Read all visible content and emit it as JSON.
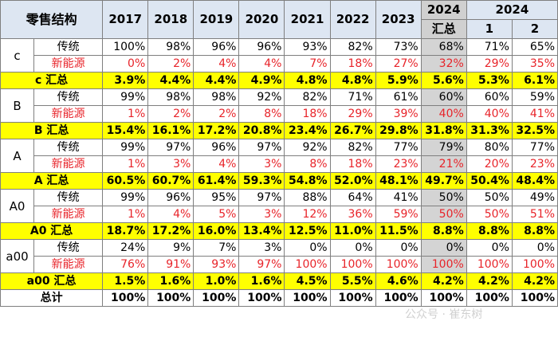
{
  "header": {
    "corner": "零售结构",
    "years": [
      "2017",
      "2018",
      "2019",
      "2020",
      "2021",
      "2022",
      "2023"
    ],
    "total_col": {
      "top": "2024",
      "bottom": "汇总"
    },
    "group": {
      "label": "2024",
      "sub": [
        "1",
        "2"
      ]
    }
  },
  "segments": [
    {
      "name": "c",
      "rows": [
        {
          "label": "传统",
          "values": [
            "100%",
            "98%",
            "96%",
            "96%",
            "93%",
            "82%",
            "73%",
            "68%",
            "71%",
            "65%"
          ]
        },
        {
          "label": "新能源",
          "values": [
            "0%",
            "2%",
            "4%",
            "4%",
            "7%",
            "18%",
            "27%",
            "32%",
            "29%",
            "35%"
          ]
        }
      ],
      "summary": {
        "label": "c 汇总",
        "values": [
          "3.9%",
          "4.4%",
          "4.4%",
          "4.9%",
          "4.8%",
          "4.8%",
          "5.9%",
          "5.6%",
          "5.3%",
          "6.1%"
        ]
      }
    },
    {
      "name": "B",
      "rows": [
        {
          "label": "传统",
          "values": [
            "99%",
            "98%",
            "98%",
            "92%",
            "82%",
            "71%",
            "61%",
            "60%",
            "60%",
            "59%"
          ]
        },
        {
          "label": "新能源",
          "values": [
            "1%",
            "2%",
            "2%",
            "8%",
            "18%",
            "29%",
            "39%",
            "40%",
            "40%",
            "41%"
          ]
        }
      ],
      "summary": {
        "label": "B 汇总",
        "values": [
          "15.4%",
          "16.1%",
          "17.2%",
          "20.8%",
          "23.4%",
          "26.7%",
          "29.8%",
          "31.8%",
          "31.3%",
          "32.5%"
        ]
      }
    },
    {
      "name": "A",
      "rows": [
        {
          "label": "传统",
          "values": [
            "99%",
            "97%",
            "96%",
            "97%",
            "92%",
            "82%",
            "77%",
            "79%",
            "80%",
            "77%"
          ]
        },
        {
          "label": "新能源",
          "values": [
            "1%",
            "3%",
            "4%",
            "3%",
            "8%",
            "18%",
            "23%",
            "21%",
            "20%",
            "23%"
          ]
        }
      ],
      "summary": {
        "label": "A 汇总",
        "values": [
          "60.5%",
          "60.7%",
          "61.4%",
          "59.3%",
          "54.8%",
          "52.0%",
          "48.1%",
          "49.7%",
          "50.4%",
          "48.4%"
        ]
      }
    },
    {
      "name": "A0",
      "rows": [
        {
          "label": "传统",
          "values": [
            "99%",
            "96%",
            "95%",
            "97%",
            "88%",
            "64%",
            "41%",
            "50%",
            "50%",
            "49%"
          ]
        },
        {
          "label": "新能源",
          "values": [
            "1%",
            "4%",
            "5%",
            "3%",
            "12%",
            "36%",
            "59%",
            "50%",
            "50%",
            "51%"
          ]
        }
      ],
      "summary": {
        "label": "A0 汇总",
        "values": [
          "18.7%",
          "17.2%",
          "16.0%",
          "13.4%",
          "12.5%",
          "11.0%",
          "11.5%",
          "8.8%",
          "8.8%",
          "8.8%"
        ]
      }
    },
    {
      "name": "a00",
      "rows": [
        {
          "label": "传统",
          "values": [
            "24%",
            "9%",
            "7%",
            "3%",
            "0%",
            "0%",
            "0%",
            "0%",
            "0%",
            "0%"
          ]
        },
        {
          "label": "新能源",
          "values": [
            "76%",
            "91%",
            "93%",
            "97%",
            "100%",
            "100%",
            "100%",
            "100%",
            "100%",
            "100%"
          ]
        }
      ],
      "summary": {
        "label": "a00 汇总",
        "values": [
          "1.5%",
          "1.6%",
          "1.0%",
          "1.6%",
          "4.5%",
          "5.5%",
          "4.6%",
          "4.2%",
          "4.2%",
          "4.2%"
        ]
      }
    }
  ],
  "total": {
    "label": "总计",
    "values": [
      "100%",
      "100%",
      "100%",
      "100%",
      "100%",
      "100%",
      "100%",
      "100%",
      "100%",
      "100%"
    ]
  },
  "watermark": "公众号 · 崔东树"
}
